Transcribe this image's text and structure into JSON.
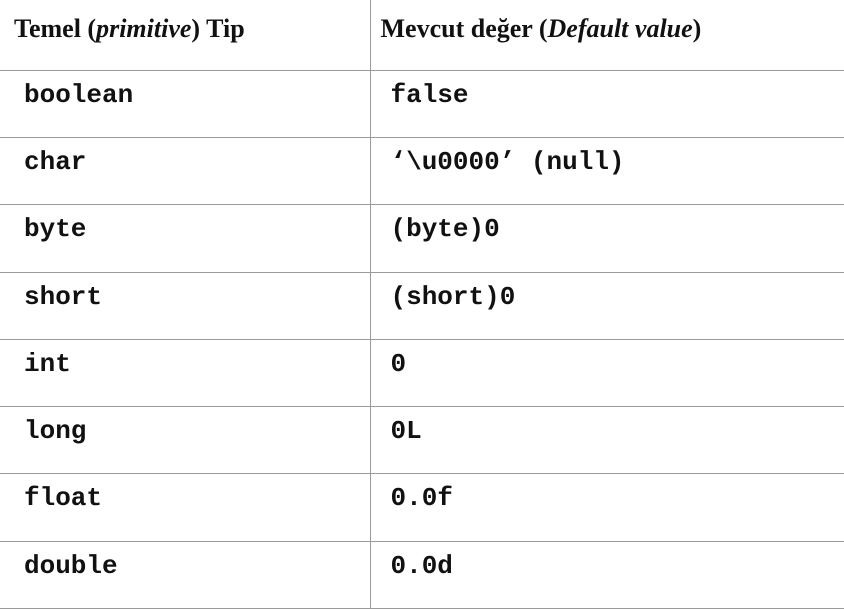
{
  "header": {
    "col1": {
      "pre": "Temel (",
      "em": "primitive",
      "post": ") Tip"
    },
    "col2": {
      "pre": "Mevcut değer (",
      "em": "Default value",
      "post": ")"
    }
  },
  "rows": [
    {
      "type": "boolean",
      "default": "false"
    },
    {
      "type": "char",
      "default": "‘\\u0000’ (null)"
    },
    {
      "type": "byte",
      "default": "(byte)0"
    },
    {
      "type": "short",
      "default": "(short)0"
    },
    {
      "type": "int",
      "default": "0"
    },
    {
      "type": "long",
      "default": "0L"
    },
    {
      "type": "float",
      "default": "0.0f"
    },
    {
      "type": "double",
      "default": "0.0d"
    }
  ]
}
